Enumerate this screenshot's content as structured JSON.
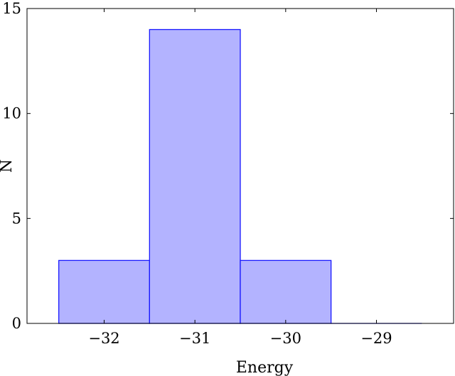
{
  "chart_data": {
    "type": "bar",
    "title": "",
    "xlabel": "Energy",
    "ylabel": "N",
    "xlim": [
      -32.85,
      -28.15
    ],
    "ylim": [
      0,
      15
    ],
    "x_ticks": [
      -32,
      -31,
      -30,
      -29
    ],
    "x_tick_labels": [
      "−32",
      "−31",
      "−30",
      "−29"
    ],
    "y_ticks": [
      0,
      5,
      10,
      15
    ],
    "y_tick_labels": [
      "0",
      "5",
      "10",
      "15"
    ],
    "bins": [
      {
        "x0": -32.5,
        "x1": -31.5,
        "value": 3
      },
      {
        "x0": -31.5,
        "x1": -30.5,
        "value": 14
      },
      {
        "x0": -30.5,
        "x1": -29.5,
        "value": 3
      },
      {
        "x0": -29.5,
        "x1": -28.5,
        "value": 0
      }
    ],
    "colors": {
      "bar_fill": "#b3b3ff",
      "bar_stroke": "#1a1aff",
      "axis": "#000000"
    },
    "grid": false,
    "legend": "none"
  }
}
